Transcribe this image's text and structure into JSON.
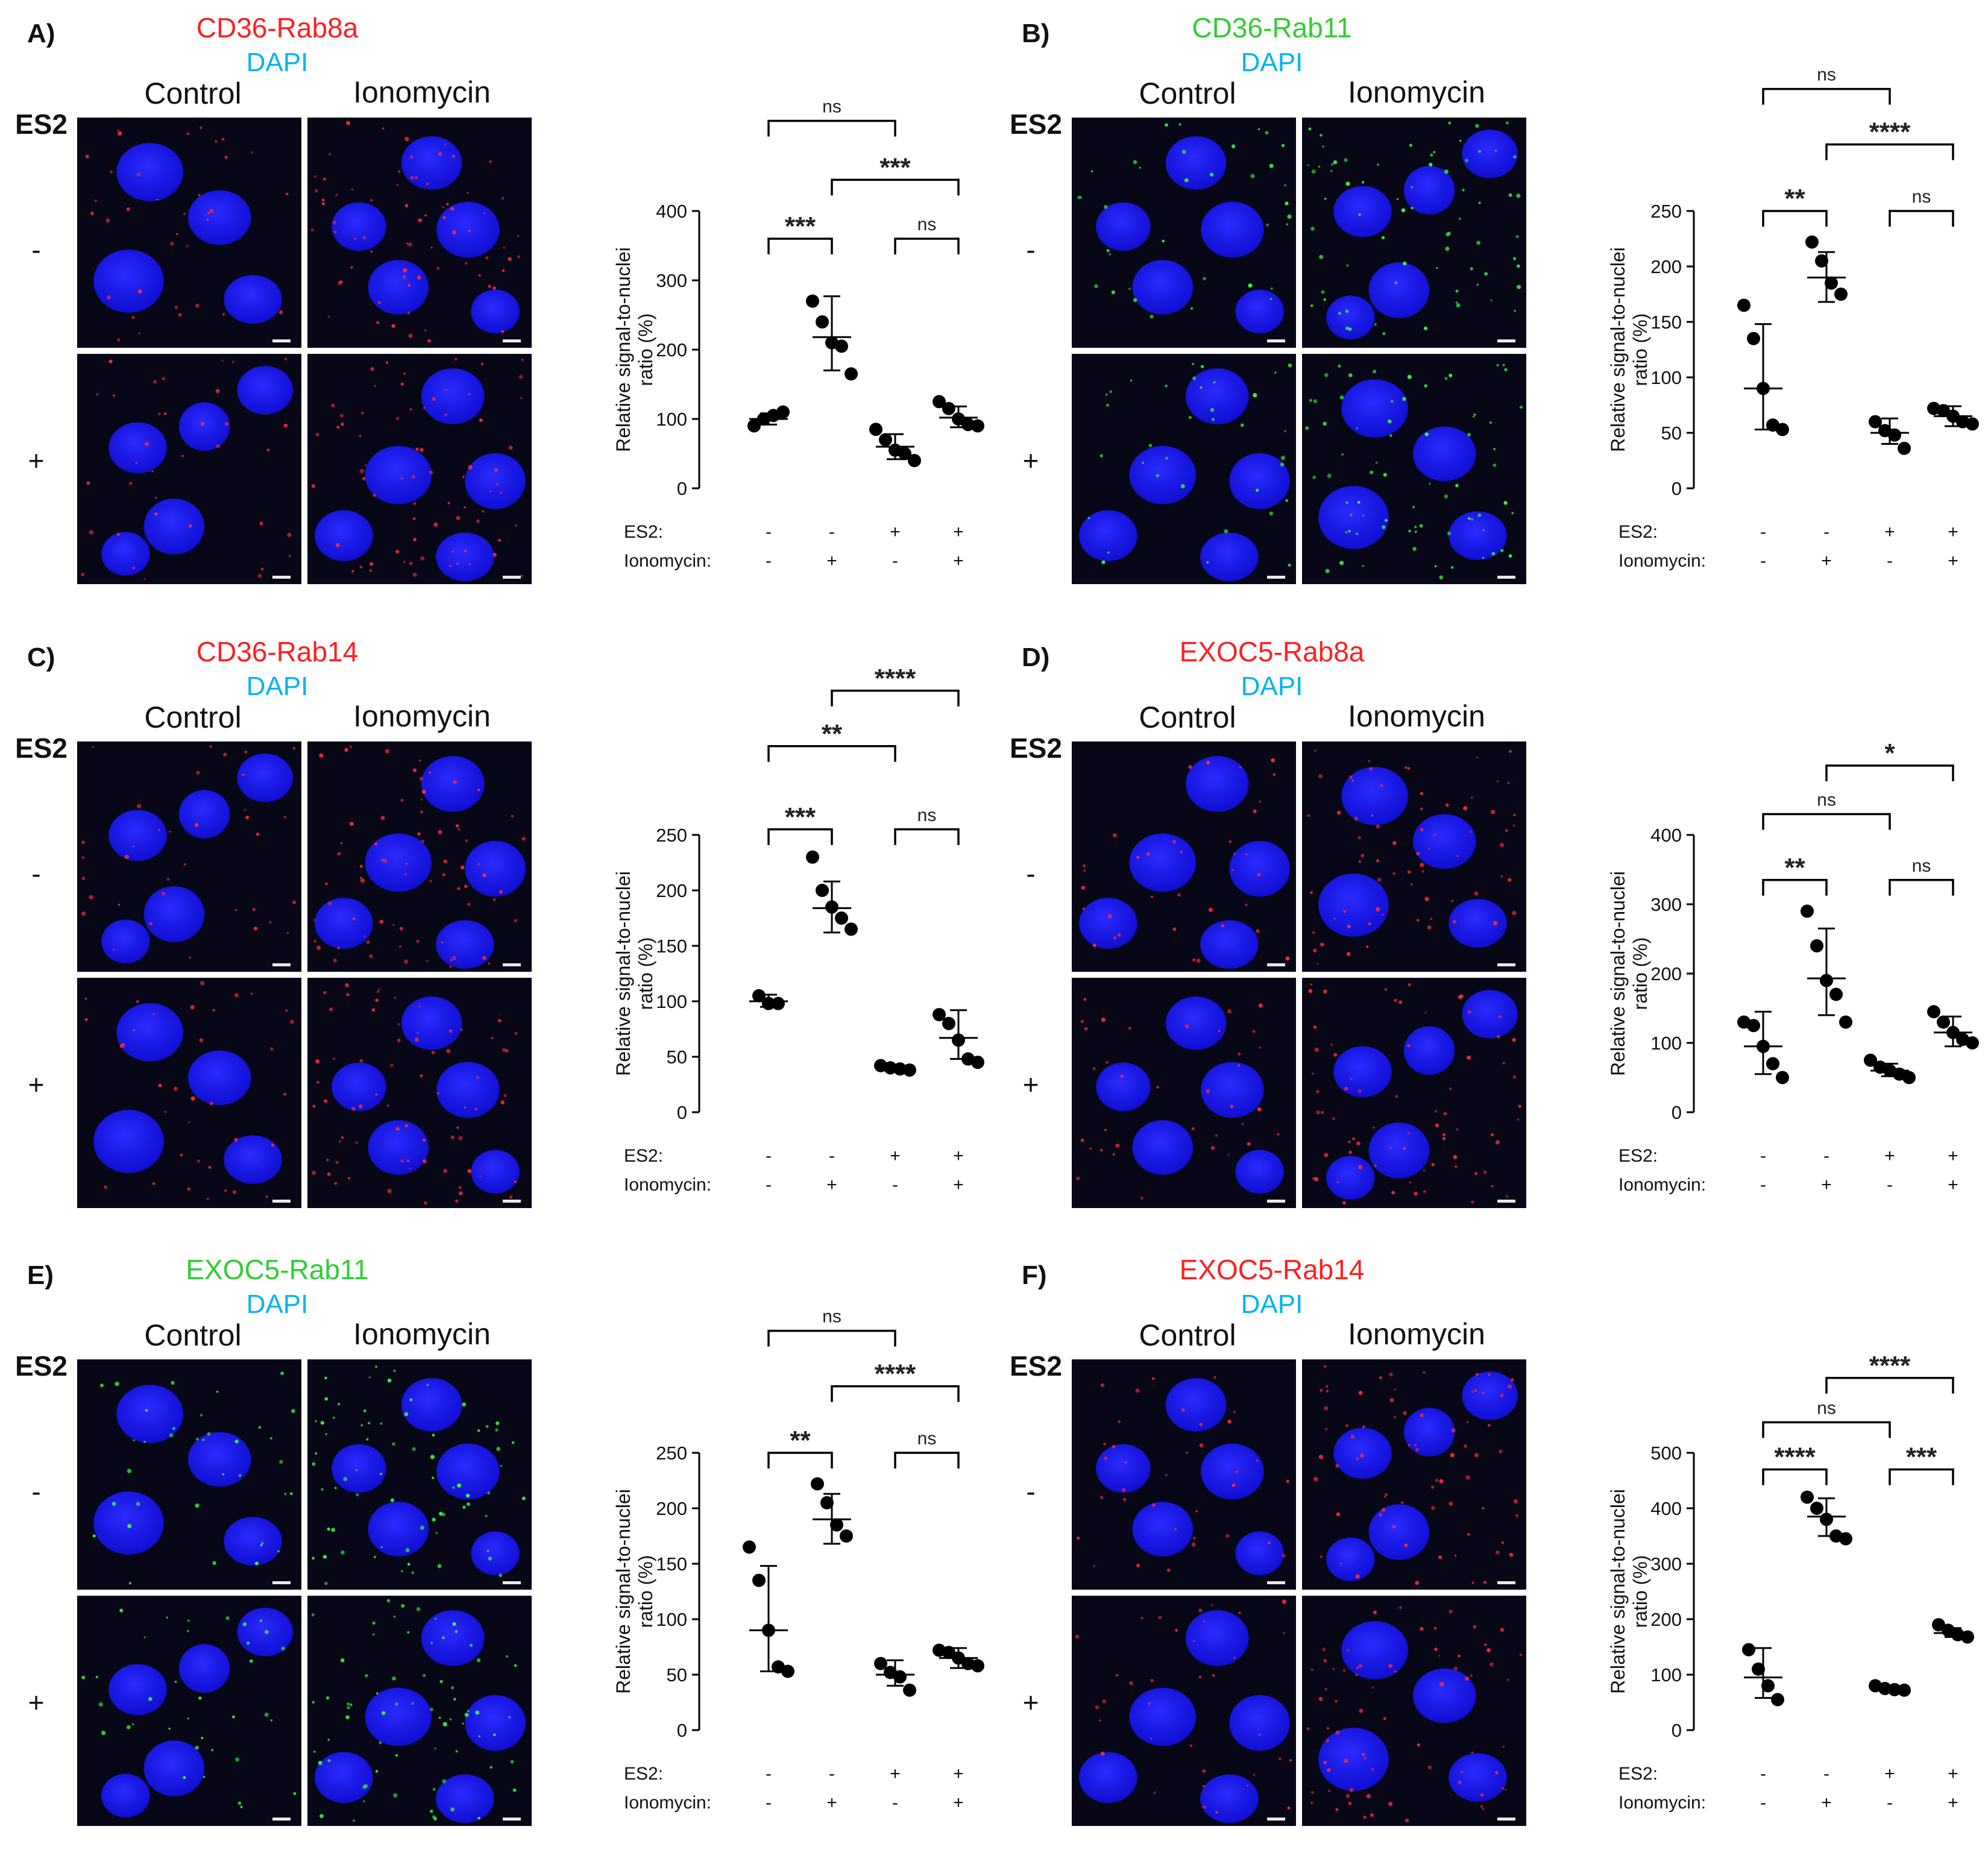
{
  "figure": {
    "es2_label": "ES2",
    "dapi_label": "DAPI",
    "control_label": "Control",
    "ionomycin_label": "Ionomycin",
    "minus": "-",
    "plus": "+",
    "row_label_es2": "ES2:",
    "row_label_iono": "Ionomycin:",
    "ylabel_line1": "Relative signal-to-nuclei",
    "ylabel_line2": "ratio (%)",
    "es2_signs": [
      "-",
      "-",
      "+",
      "+"
    ],
    "iono_signs": [
      "-",
      "+",
      "-",
      "+"
    ]
  },
  "colors": {
    "red_title": "#ff1f1f",
    "green_title": "#33cc33",
    "dapi": "#00b4f0",
    "nuclei": "#1414e6",
    "micro_bg": "#070718"
  },
  "panels": [
    {
      "letter": "A)",
      "title": "CD36-Rab8a",
      "title_color": "#ff1f1f",
      "tint": "red"
    },
    {
      "letter": "B)",
      "title": "CD36-Rab11",
      "title_color": "#33cc33",
      "tint": "green"
    },
    {
      "letter": "C)",
      "title": "CD36-Rab14",
      "title_color": "#ff1f1f",
      "tint": "red"
    },
    {
      "letter": "D)",
      "title": "EXOC5-Rab8a",
      "title_color": "#ff1f1f",
      "tint": "red"
    },
    {
      "letter": "E)",
      "title": "EXOC5-Rab11",
      "title_color": "#33cc33",
      "tint": "green"
    },
    {
      "letter": "F)",
      "title": "EXOC5-Rab14",
      "title_color": "#ff1f1f",
      "tint": "red"
    }
  ],
  "chart_data": [
    {
      "type": "scatter",
      "title": "",
      "categories": [
        "ES2 - / Ionomycin -",
        "ES2 - / Ionomycin +",
        "ES2 + / Ionomycin -",
        "ES2 + / Ionomycin +"
      ],
      "ylabel": "Relative signal-to-nuclei ratio (%)",
      "ylim": [
        0,
        400
      ],
      "yticks": [
        0,
        100,
        200,
        300,
        400
      ],
      "groups": [
        {
          "points": [
            90,
            100,
            105,
            110
          ],
          "mean": 100,
          "sd_low": 92,
          "sd_high": 108
        },
        {
          "points": [
            270,
            240,
            210,
            205,
            165
          ],
          "mean": 218,
          "sd_low": 170,
          "sd_high": 277
        },
        {
          "points": [
            85,
            70,
            55,
            50,
            40
          ],
          "mean": 60,
          "sd_low": 42,
          "sd_high": 78
        },
        {
          "points": [
            125,
            115,
            100,
            92,
            90
          ],
          "mean": 102,
          "sd_low": 88,
          "sd_high": 118
        }
      ],
      "comparisons": [
        {
          "g1": 0,
          "g2": 1,
          "label": "***",
          "y": 360
        },
        {
          "g1": 2,
          "g2": 3,
          "label": "ns",
          "y": 360
        },
        {
          "g1": 1,
          "g2": 3,
          "label": "***",
          "y": 445
        },
        {
          "g1": 0,
          "g2": 2,
          "label": "ns",
          "y": 530
        }
      ]
    },
    {
      "type": "scatter",
      "title": "",
      "categories": [
        "ES2 - / Ionomycin -",
        "ES2 - / Ionomycin +",
        "ES2 + / Ionomycin -",
        "ES2 + / Ionomycin +"
      ],
      "ylabel": "Relative signal-to-nuclei ratio (%)",
      "ylim": [
        0,
        250
      ],
      "yticks": [
        0,
        50,
        100,
        150,
        200,
        250
      ],
      "groups": [
        {
          "points": [
            165,
            135,
            90,
            57,
            53
          ],
          "mean": 90,
          "sd_low": 53,
          "sd_high": 148
        },
        {
          "points": [
            222,
            205,
            185,
            175
          ],
          "mean": 190,
          "sd_low": 168,
          "sd_high": 213
        },
        {
          "points": [
            60,
            52,
            48,
            36
          ],
          "mean": 50,
          "sd_low": 40,
          "sd_high": 63
        },
        {
          "points": [
            72,
            70,
            65,
            60,
            58
          ],
          "mean": 65,
          "sd_low": 56,
          "sd_high": 74
        }
      ],
      "comparisons": [
        {
          "g1": 0,
          "g2": 1,
          "label": "**",
          "y": 250
        },
        {
          "g1": 2,
          "g2": 3,
          "label": "ns",
          "y": 250
        },
        {
          "g1": 1,
          "g2": 3,
          "label": "****",
          "y": 310
        },
        {
          "g1": 0,
          "g2": 2,
          "label": "ns",
          "y": 360
        }
      ]
    },
    {
      "type": "scatter",
      "title": "",
      "categories": [
        "ES2 - / Ionomycin -",
        "ES2 - / Ionomycin +",
        "ES2 + / Ionomycin -",
        "ES2 + / Ionomycin +"
      ],
      "ylabel": "Relative signal-to-nuclei ratio (%)",
      "ylim": [
        0,
        250
      ],
      "yticks": [
        0,
        50,
        100,
        150,
        200,
        250
      ],
      "groups": [
        {
          "points": [
            105,
            98,
            98
          ],
          "mean": 100,
          "sd_low": 95,
          "sd_high": 106
        },
        {
          "points": [
            230,
            200,
            185,
            175,
            165
          ],
          "mean": 184,
          "sd_low": 162,
          "sd_high": 208
        },
        {
          "points": [
            42,
            40,
            39,
            38
          ],
          "mean": 40,
          "sd_low": 38,
          "sd_high": 42
        },
        {
          "points": [
            88,
            80,
            65,
            48,
            45
          ],
          "mean": 67,
          "sd_low": 48,
          "sd_high": 92
        }
      ],
      "comparisons": [
        {
          "g1": 0,
          "g2": 1,
          "label": "***",
          "y": 255
        },
        {
          "g1": 2,
          "g2": 3,
          "label": "ns",
          "y": 255
        },
        {
          "g1": 0,
          "g2": 2,
          "label": "**",
          "y": 330
        },
        {
          "g1": 1,
          "g2": 3,
          "label": "****",
          "y": 380
        }
      ]
    },
    {
      "type": "scatter",
      "title": "",
      "categories": [
        "ES2 - / Ionomycin -",
        "ES2 - / Ionomycin +",
        "ES2 + / Ionomycin -",
        "ES2 + / Ionomycin +"
      ],
      "ylabel": "Relative signal-to-nuclei ratio (%)",
      "ylim": [
        0,
        400
      ],
      "yticks": [
        0,
        100,
        200,
        300,
        400
      ],
      "groups": [
        {
          "points": [
            130,
            125,
            95,
            70,
            50
          ],
          "mean": 95,
          "sd_low": 55,
          "sd_high": 145
        },
        {
          "points": [
            290,
            240,
            190,
            170,
            130
          ],
          "mean": 193,
          "sd_low": 140,
          "sd_high": 265
        },
        {
          "points": [
            75,
            65,
            60,
            55,
            50
          ],
          "mean": 60,
          "sd_low": 52,
          "sd_high": 70
        },
        {
          "points": [
            145,
            130,
            115,
            105,
            100
          ],
          "mean": 115,
          "sd_low": 95,
          "sd_high": 138
        }
      ],
      "comparisons": [
        {
          "g1": 0,
          "g2": 1,
          "label": "**",
          "y": 335
        },
        {
          "g1": 2,
          "g2": 3,
          "label": "ns",
          "y": 335
        },
        {
          "g1": 0,
          "g2": 2,
          "label": "ns",
          "y": 430
        },
        {
          "g1": 1,
          "g2": 3,
          "label": "*",
          "y": 500
        }
      ]
    },
    {
      "type": "scatter",
      "title": "",
      "categories": [
        "ES2 - / Ionomycin -",
        "ES2 - / Ionomycin +",
        "ES2 + / Ionomycin -",
        "ES2 + / Ionomycin +"
      ],
      "ylabel": "Relative signal-to-nuclei ratio (%)",
      "ylim": [
        0,
        250
      ],
      "yticks": [
        0,
        50,
        100,
        150,
        200,
        250
      ],
      "groups": [
        {
          "points": [
            165,
            135,
            90,
            57,
            53
          ],
          "mean": 90,
          "sd_low": 53,
          "sd_high": 148
        },
        {
          "points": [
            222,
            205,
            185,
            175
          ],
          "mean": 190,
          "sd_low": 168,
          "sd_high": 213
        },
        {
          "points": [
            60,
            52,
            48,
            36
          ],
          "mean": 50,
          "sd_low": 40,
          "sd_high": 63
        },
        {
          "points": [
            72,
            70,
            65,
            60,
            58
          ],
          "mean": 65,
          "sd_low": 56,
          "sd_high": 74
        }
      ],
      "comparisons": [
        {
          "g1": 0,
          "g2": 1,
          "label": "**",
          "y": 250
        },
        {
          "g1": 2,
          "g2": 3,
          "label": "ns",
          "y": 250
        },
        {
          "g1": 1,
          "g2": 3,
          "label": "****",
          "y": 310
        },
        {
          "g1": 0,
          "g2": 2,
          "label": "ns",
          "y": 360
        }
      ]
    },
    {
      "type": "scatter",
      "title": "",
      "categories": [
        "ES2 - / Ionomycin -",
        "ES2 - / Ionomycin +",
        "ES2 + / Ionomycin -",
        "ES2 + / Ionomycin +"
      ],
      "ylabel": "Relative signal-to-nuclei ratio (%)",
      "ylim": [
        0,
        500
      ],
      "yticks": [
        0,
        100,
        200,
        300,
        400,
        500
      ],
      "groups": [
        {
          "points": [
            145,
            110,
            80,
            55
          ],
          "mean": 95,
          "sd_low": 58,
          "sd_high": 148
        },
        {
          "points": [
            420,
            400,
            380,
            350,
            345
          ],
          "mean": 385,
          "sd_low": 350,
          "sd_high": 418
        },
        {
          "points": [
            80,
            75,
            73,
            72
          ],
          "mean": 75,
          "sd_low": 72,
          "sd_high": 78
        },
        {
          "points": [
            190,
            180,
            172,
            168
          ],
          "mean": 175,
          "sd_low": 168,
          "sd_high": 184
        }
      ],
      "comparisons": [
        {
          "g1": 0,
          "g2": 1,
          "label": "****",
          "y": 470
        },
        {
          "g1": 2,
          "g2": 3,
          "label": "***",
          "y": 470
        },
        {
          "g1": 0,
          "g2": 2,
          "label": "ns",
          "y": 555
        },
        {
          "g1": 1,
          "g2": 3,
          "label": "****",
          "y": 635
        }
      ]
    }
  ]
}
